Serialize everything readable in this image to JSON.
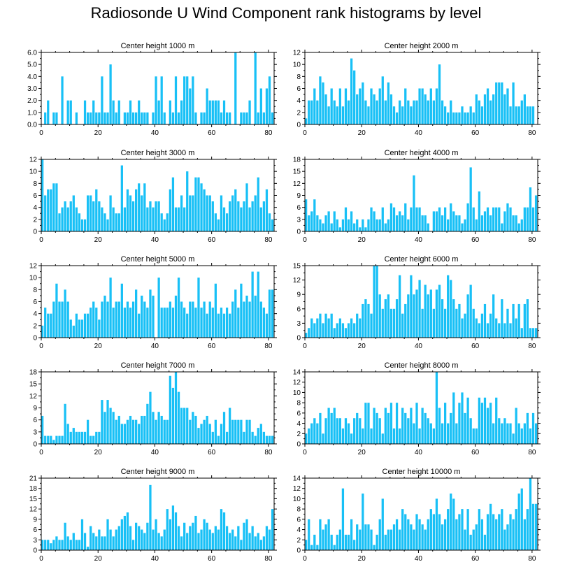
{
  "figure_title": "Radiosonde U Wind Component rank histograms by level",
  "colors": {
    "bar": "#18c0f6",
    "axis": "#000000"
  },
  "chart_data": [
    {
      "type": "bar",
      "title": "Center height 1000 m",
      "xlim": [
        0,
        82
      ],
      "ylim": [
        0,
        6
      ],
      "yticks": [
        0,
        1,
        2,
        3,
        4,
        5,
        6
      ],
      "ytick_labels": [
        "0.0",
        "1.0",
        "2.0",
        "3.0",
        "4.0",
        "5.0",
        "6.0"
      ],
      "xticks": [
        0,
        20,
        40,
        60,
        80
      ],
      "values": [
        0,
        1,
        2,
        0,
        1,
        1,
        0,
        4,
        0,
        2,
        2,
        0,
        1,
        0,
        0,
        2,
        1,
        1,
        2,
        1,
        1,
        4,
        1,
        1,
        5,
        2,
        1,
        2,
        0,
        1,
        1,
        2,
        1,
        1,
        2,
        1,
        1,
        1,
        0,
        1,
        4,
        2,
        4,
        1,
        0,
        2,
        1,
        4,
        1,
        2,
        4,
        4,
        3,
        4,
        1,
        0,
        1,
        1,
        3,
        2,
        2,
        2,
        2,
        1,
        2,
        1,
        1,
        0,
        6,
        0,
        1,
        1,
        1,
        2,
        0,
        6,
        1,
        3,
        1,
        3,
        4,
        1
      ]
    },
    {
      "type": "bar",
      "title": "Center height 2000 m",
      "xlim": [
        0,
        82
      ],
      "ylim": [
        0,
        12
      ],
      "yticks": [
        0,
        2,
        4,
        6,
        8,
        10,
        12
      ],
      "ytick_labels": [
        "0",
        "2",
        "4",
        "6",
        "8",
        "10",
        "12"
      ],
      "xticks": [
        0,
        20,
        40,
        60,
        80
      ],
      "values": [
        1,
        4,
        4,
        6,
        4,
        8,
        7,
        5,
        3,
        6,
        4,
        3,
        6,
        3,
        6,
        4,
        11,
        9,
        5,
        6,
        7,
        4,
        3,
        6,
        5,
        4,
        6,
        8,
        4,
        7,
        5,
        3,
        2,
        4,
        3,
        6,
        4,
        3,
        4,
        4,
        6,
        6,
        5,
        4,
        6,
        4,
        6,
        10,
        4,
        3,
        2,
        4,
        2,
        2,
        2,
        3,
        2,
        2,
        3,
        2,
        5,
        4,
        3,
        5,
        6,
        4,
        5,
        7,
        7,
        7,
        5,
        6,
        3,
        7,
        3,
        3,
        4,
        5,
        3,
        3,
        3,
        0
      ]
    },
    {
      "type": "bar",
      "title": "Center height 3000 m",
      "xlim": [
        0,
        82
      ],
      "ylim": [
        0,
        12
      ],
      "yticks": [
        0,
        2,
        4,
        6,
        8,
        10,
        12
      ],
      "ytick_labels": [
        "0",
        "2",
        "4",
        "6",
        "8",
        "10",
        "12"
      ],
      "xticks": [
        0,
        20,
        40,
        60,
        80
      ],
      "values": [
        12,
        6,
        7,
        7,
        8,
        8,
        3,
        4,
        5,
        4,
        5,
        6,
        4,
        3,
        2,
        2,
        6,
        6,
        5,
        7,
        5,
        4,
        3,
        2,
        6,
        4,
        3,
        3,
        11,
        4,
        7,
        6,
        5,
        7,
        8,
        6,
        8,
        4,
        5,
        4,
        5,
        5,
        3,
        2,
        3,
        7,
        9,
        4,
        4,
        6,
        4,
        10,
        6,
        6,
        9,
        9,
        8,
        7,
        6,
        6,
        5,
        3,
        2,
        6,
        4,
        3,
        5,
        6,
        7,
        5,
        4,
        5,
        8,
        4,
        5,
        6,
        9,
        4,
        5,
        7,
        3,
        2
      ]
    },
    {
      "type": "bar",
      "title": "Center height 4000 m",
      "xlim": [
        0,
        82
      ],
      "ylim": [
        0,
        18
      ],
      "yticks": [
        0,
        3,
        6,
        9,
        12,
        15,
        18
      ],
      "ytick_labels": [
        "0",
        "3",
        "6",
        "9",
        "12",
        "15",
        "18"
      ],
      "xticks": [
        0,
        20,
        40,
        60,
        80
      ],
      "values": [
        8,
        4,
        5,
        8,
        4,
        3,
        2,
        4,
        5,
        2,
        5,
        3,
        1,
        3,
        6,
        3,
        5,
        2,
        3,
        1,
        3,
        1,
        3,
        6,
        5,
        3,
        3,
        6,
        2,
        3,
        7,
        6,
        4,
        5,
        4,
        7,
        3,
        6,
        14,
        6,
        6,
        4,
        4,
        2,
        0,
        5,
        5,
        6,
        4,
        6,
        3,
        7,
        5,
        4,
        4,
        2,
        3,
        7,
        16,
        6,
        3,
        10,
        4,
        5,
        6,
        4,
        6,
        6,
        6,
        2,
        5,
        7,
        6,
        4,
        4,
        2,
        3,
        6,
        6,
        11,
        6,
        9
      ]
    },
    {
      "type": "bar",
      "title": "Center height 5000 m",
      "xlim": [
        0,
        82
      ],
      "ylim": [
        0,
        12
      ],
      "yticks": [
        0,
        2,
        4,
        6,
        8,
        10,
        12
      ],
      "ytick_labels": [
        "0",
        "2",
        "4",
        "6",
        "8",
        "10",
        "12"
      ],
      "xticks": [
        0,
        20,
        40,
        60,
        80
      ],
      "values": [
        2,
        5,
        4,
        4,
        6,
        9,
        6,
        6,
        8,
        6,
        3,
        2,
        4,
        3,
        3,
        4,
        4,
        5,
        6,
        5,
        3,
        6,
        7,
        6,
        10,
        5,
        6,
        6,
        9,
        5,
        6,
        5,
        6,
        8,
        4,
        7,
        6,
        5,
        8,
        7,
        0,
        10,
        5,
        5,
        5,
        6,
        5,
        7,
        10,
        6,
        5,
        4,
        6,
        6,
        5,
        10,
        5,
        6,
        4,
        6,
        5,
        9,
        4,
        5,
        4,
        5,
        4,
        6,
        8,
        5,
        9,
        6,
        7,
        6,
        11,
        7,
        11,
        6,
        5,
        4,
        8,
        8
      ]
    },
    {
      "type": "bar",
      "title": "Center height 6000 m",
      "xlim": [
        0,
        82
      ],
      "ylim": [
        0,
        15
      ],
      "yticks": [
        0,
        3,
        6,
        9,
        12,
        15
      ],
      "ytick_labels": [
        "0",
        "3",
        "6",
        "9",
        "12",
        "15"
      ],
      "xticks": [
        0,
        20,
        40,
        60,
        80
      ],
      "values": [
        1,
        2,
        4,
        3,
        4,
        5,
        3,
        5,
        4,
        5,
        2,
        3,
        4,
        3,
        2,
        3,
        4,
        3,
        5,
        4,
        7,
        8,
        7,
        5,
        15,
        15,
        9,
        6,
        8,
        9,
        6,
        6,
        8,
        13,
        5,
        7,
        9,
        13,
        9,
        10,
        12,
        6,
        11,
        9,
        10,
        6,
        10,
        11,
        8,
        6,
        13,
        12,
        8,
        6,
        7,
        4,
        5,
        9,
        11,
        6,
        4,
        3,
        5,
        7,
        3,
        5,
        9,
        4,
        3,
        8,
        3,
        6,
        3,
        7,
        4,
        7,
        2,
        7,
        8,
        2,
        2,
        2
      ]
    },
    {
      "type": "bar",
      "title": "Center height 7000 m",
      "xlim": [
        0,
        82
      ],
      "ylim": [
        0,
        18
      ],
      "yticks": [
        0,
        3,
        6,
        9,
        12,
        15,
        18
      ],
      "ytick_labels": [
        "0",
        "3",
        "6",
        "9",
        "12",
        "15",
        "18"
      ],
      "xticks": [
        0,
        20,
        40,
        60,
        80
      ],
      "values": [
        7,
        2,
        2,
        2,
        1,
        2,
        2,
        2,
        10,
        5,
        3,
        4,
        3,
        3,
        3,
        3,
        6,
        2,
        2,
        3,
        3,
        11,
        8,
        11,
        9,
        8,
        6,
        7,
        5,
        5,
        6,
        7,
        6,
        6,
        5,
        7,
        7,
        10,
        13,
        8,
        6,
        8,
        7,
        6,
        6,
        17,
        14,
        18,
        13,
        9,
        9,
        9,
        6,
        8,
        7,
        4,
        5,
        6,
        7,
        5,
        3,
        6,
        2,
        5,
        8,
        3,
        9,
        6,
        6,
        6,
        6,
        3,
        6,
        6,
        3,
        2,
        4,
        5,
        3,
        2,
        2,
        2
      ]
    },
    {
      "type": "bar",
      "title": "Center height 8000 m",
      "xlim": [
        0,
        82
      ],
      "ylim": [
        0,
        14
      ],
      "yticks": [
        0,
        2,
        4,
        6,
        8,
        10,
        12,
        14
      ],
      "ytick_labels": [
        "0",
        "2",
        "4",
        "6",
        "8",
        "10",
        "12",
        "14"
      ],
      "xticks": [
        0,
        20,
        40,
        60,
        80
      ],
      "values": [
        2,
        3,
        4,
        5,
        4,
        6,
        2,
        5,
        7,
        6,
        7,
        5,
        5,
        3,
        5,
        4,
        2,
        5,
        6,
        5,
        3,
        8,
        8,
        3,
        7,
        6,
        5,
        2,
        7,
        6,
        8,
        3,
        8,
        3,
        7,
        6,
        5,
        7,
        4,
        8,
        3,
        7,
        6,
        5,
        4,
        3,
        14,
        7,
        4,
        8,
        4,
        6,
        10,
        4,
        8,
        10,
        6,
        9,
        5,
        3,
        3,
        9,
        8,
        9,
        7,
        8,
        4,
        9,
        5,
        4,
        5,
        4,
        4,
        2,
        7,
        4,
        3,
        4,
        6,
        3,
        6,
        4
      ]
    },
    {
      "type": "bar",
      "title": "Center height 9000 m",
      "xlim": [
        0,
        82
      ],
      "ylim": [
        0,
        21
      ],
      "yticks": [
        0,
        3,
        6,
        9,
        12,
        15,
        18,
        21
      ],
      "ytick_labels": [
        "0",
        "3",
        "6",
        "9",
        "12",
        "15",
        "18",
        "21"
      ],
      "xticks": [
        0,
        20,
        40,
        60,
        80
      ],
      "values": [
        3,
        3,
        3,
        2,
        3,
        4,
        3,
        3,
        8,
        4,
        3,
        5,
        3,
        3,
        9,
        5,
        1,
        7,
        5,
        4,
        6,
        4,
        4,
        9,
        6,
        4,
        6,
        7,
        9,
        10,
        11,
        7,
        3,
        8,
        7,
        6,
        5,
        8,
        19,
        6,
        9,
        5,
        4,
        6,
        12,
        9,
        13,
        11,
        7,
        4,
        8,
        5,
        7,
        8,
        10,
        5,
        6,
        9,
        8,
        6,
        5,
        7,
        6,
        12,
        11,
        7,
        5,
        6,
        4,
        7,
        3,
        8,
        9,
        5,
        7,
        4,
        5,
        3,
        4,
        7,
        6,
        12
      ]
    },
    {
      "type": "bar",
      "title": "Center height 10000 m",
      "xlim": [
        0,
        82
      ],
      "ylim": [
        0,
        14
      ],
      "yticks": [
        0,
        2,
        4,
        6,
        8,
        10,
        12,
        14
      ],
      "ytick_labels": [
        "0",
        "2",
        "4",
        "6",
        "8",
        "10",
        "12",
        "14"
      ],
      "xticks": [
        0,
        20,
        40,
        60,
        80
      ],
      "values": [
        2,
        6,
        1,
        3,
        1,
        6,
        4,
        5,
        6,
        3,
        1,
        3,
        4,
        12,
        3,
        3,
        6,
        2,
        5,
        4,
        11,
        5,
        5,
        4,
        1,
        3,
        6,
        10,
        3,
        4,
        4,
        5,
        6,
        4,
        8,
        7,
        6,
        5,
        4,
        7,
        6,
        5,
        4,
        6,
        8,
        7,
        10,
        7,
        5,
        6,
        8,
        11,
        10,
        6,
        7,
        8,
        4,
        8,
        3,
        4,
        5,
        8,
        6,
        3,
        7,
        9,
        7,
        6,
        7,
        8,
        4,
        5,
        7,
        6,
        8,
        11,
        12,
        6,
        8,
        14,
        9,
        9
      ]
    }
  ]
}
